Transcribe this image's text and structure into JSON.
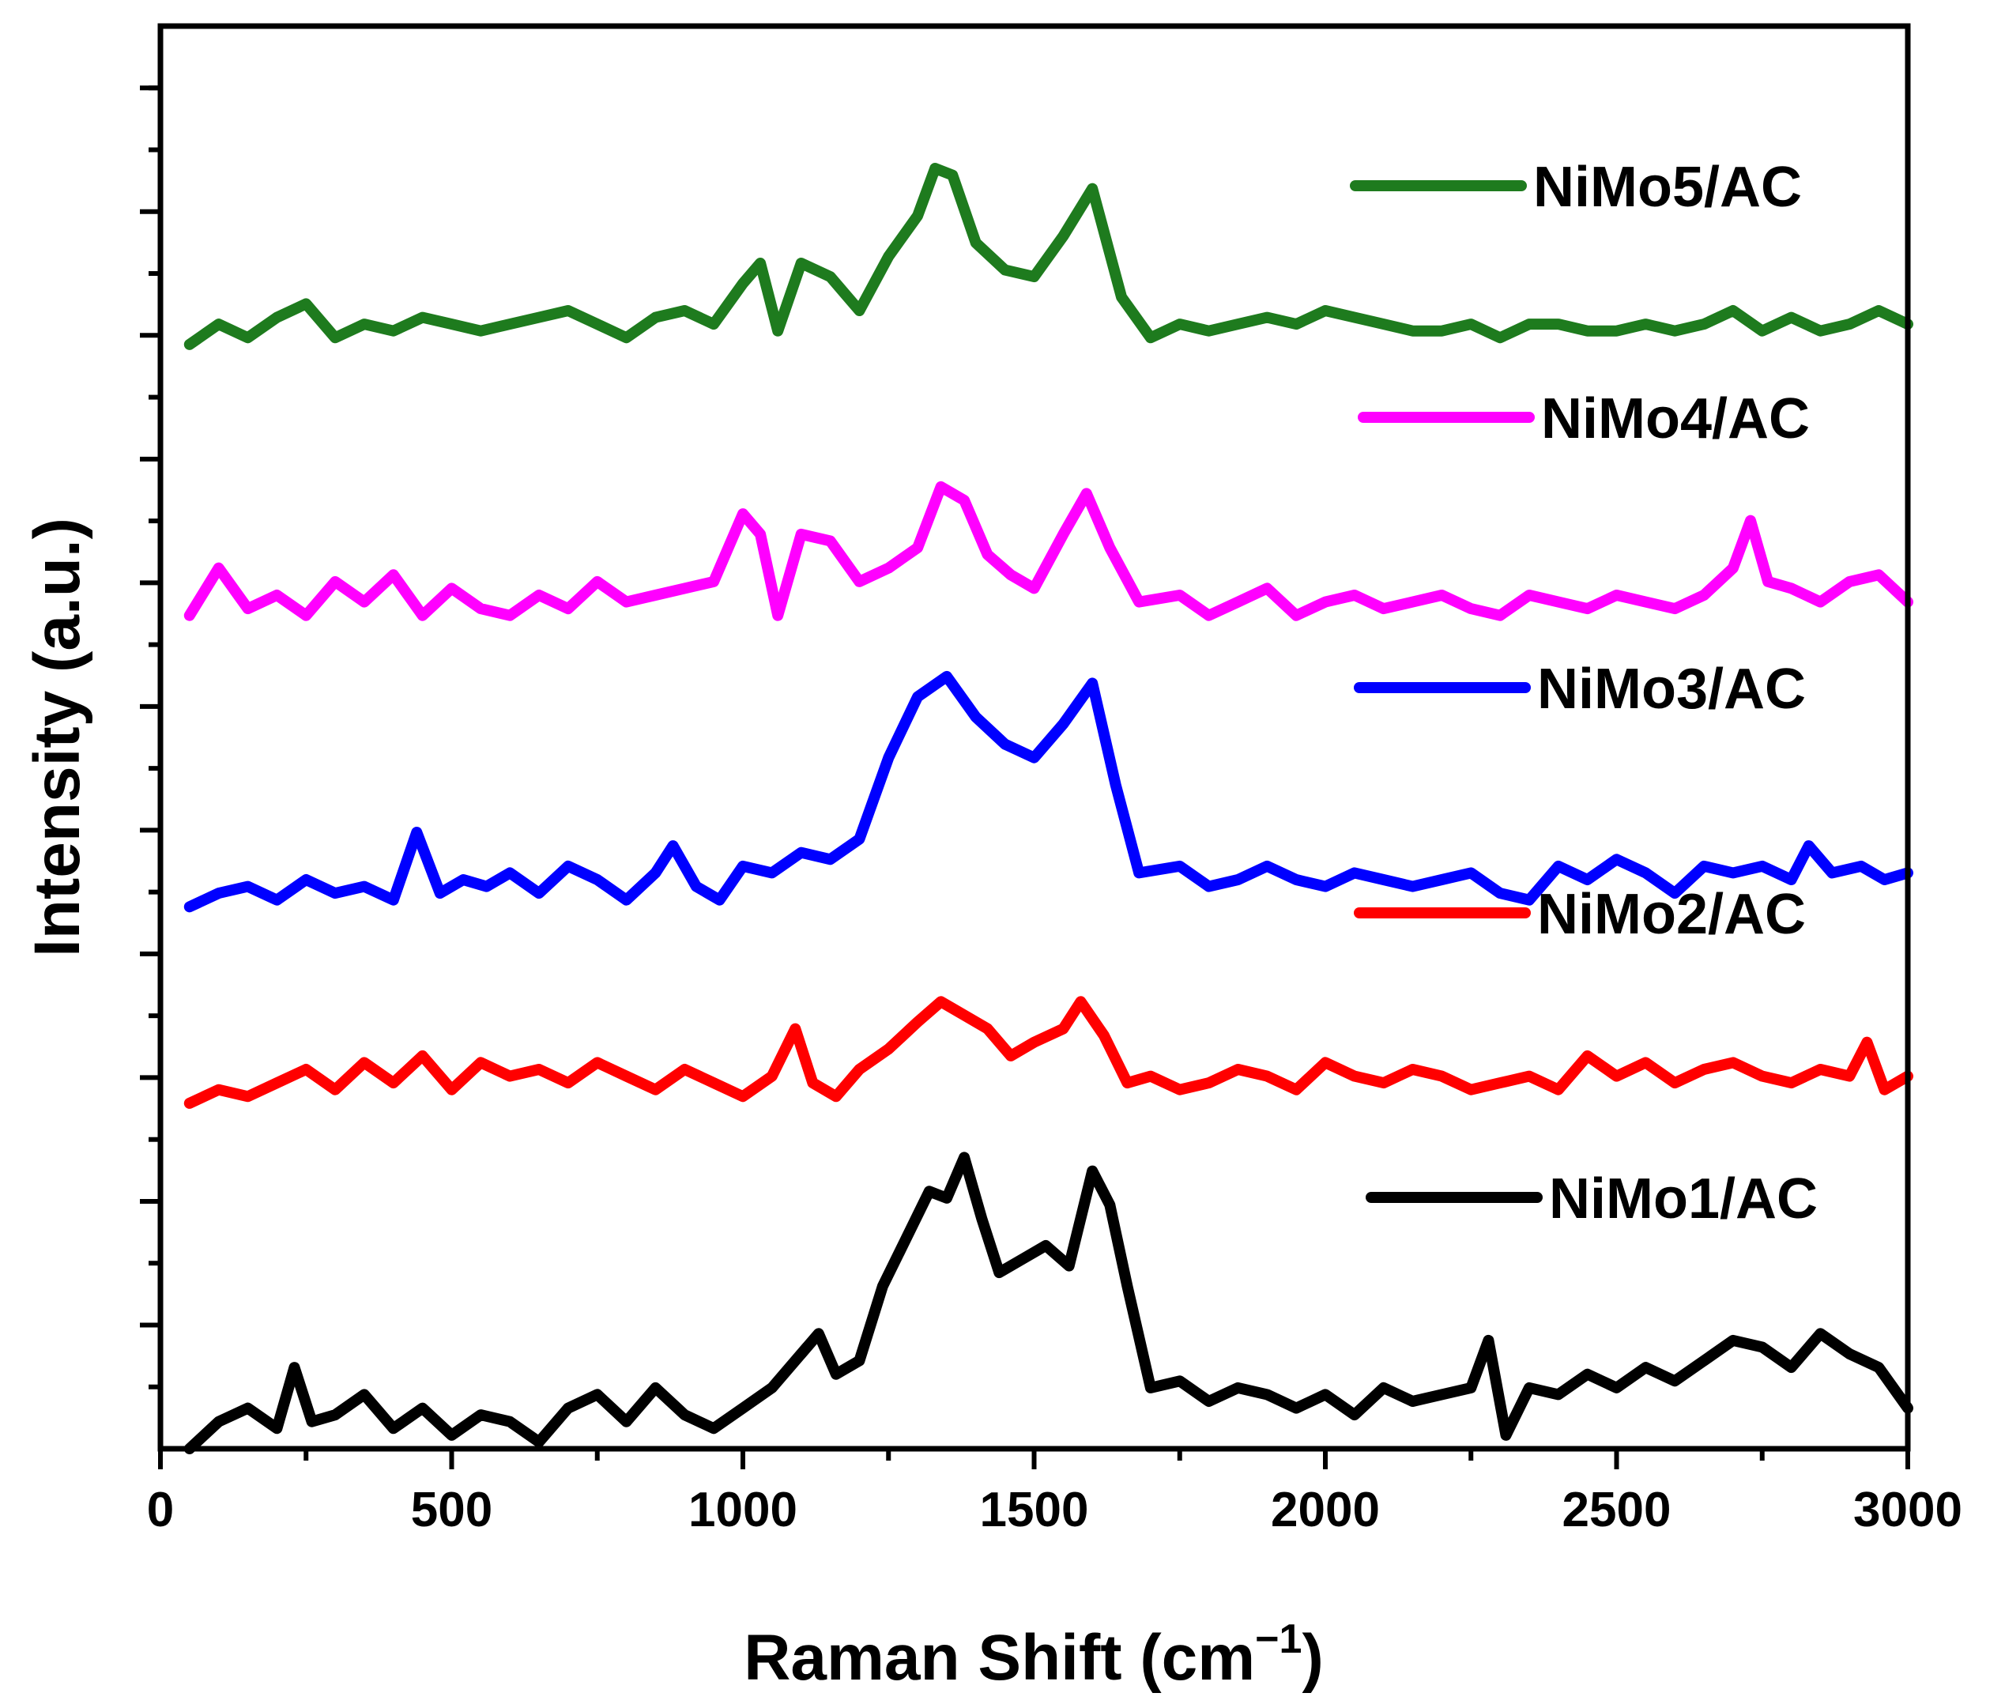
{
  "chart_data": {
    "type": "line",
    "title": "",
    "xlabel": "Raman Shift (cm",
    "xlabel_sup": "−1",
    "xlabel_close": ")",
    "ylabel": "Intensity (a.u.)",
    "xlim": [
      0,
      3000
    ],
    "xticks": [
      0,
      500,
      1000,
      1500,
      2000,
      2500,
      3000
    ],
    "xtick_labels": [
      "0",
      "500",
      "1000",
      "1500",
      "2000",
      "2500",
      "3000"
    ],
    "ylim": [
      0,
      21
    ],
    "y_tick_count": 11,
    "legend_placement": "right, next to each trace",
    "series": [
      {
        "name": "NiMo5/AC",
        "color": "#1e7b1e",
        "x": [
          50,
          100,
          150,
          200,
          250,
          300,
          350,
          400,
          450,
          500,
          550,
          600,
          650,
          700,
          750,
          800,
          850,
          900,
          950,
          1000,
          1030,
          1060,
          1100,
          1150,
          1200,
          1250,
          1300,
          1330,
          1360,
          1400,
          1450,
          1500,
          1550,
          1600,
          1650,
          1700,
          1750,
          1800,
          1850,
          1900,
          1950,
          2000,
          2050,
          2100,
          2150,
          2200,
          2250,
          2300,
          2350,
          2400,
          2450,
          2500,
          2550,
          2600,
          2650,
          2700,
          2750,
          2800,
          2850,
          2900,
          2950,
          3000
        ],
        "y": [
          16.3,
          16.6,
          16.4,
          16.7,
          16.9,
          16.4,
          16.6,
          16.5,
          16.7,
          16.6,
          16.5,
          16.6,
          16.7,
          16.8,
          16.6,
          16.4,
          16.7,
          16.8,
          16.6,
          17.2,
          17.5,
          16.5,
          17.5,
          17.3,
          16.8,
          17.6,
          18.2,
          18.9,
          18.8,
          17.8,
          17.4,
          17.3,
          17.9,
          18.6,
          17.0,
          16.4,
          16.6,
          16.5,
          16.6,
          16.7,
          16.6,
          16.8,
          16.7,
          16.6,
          16.5,
          16.5,
          16.6,
          16.4,
          16.6,
          16.6,
          16.5,
          16.5,
          16.6,
          16.5,
          16.6,
          16.8,
          16.5,
          16.7,
          16.5,
          16.6,
          16.8,
          16.6
        ]
      },
      {
        "name": "NiMo4/AC",
        "color": "#ff00ff",
        "x": [
          50,
          100,
          150,
          200,
          250,
          300,
          350,
          400,
          450,
          500,
          550,
          600,
          650,
          700,
          750,
          800,
          850,
          900,
          950,
          1000,
          1030,
          1060,
          1100,
          1150,
          1200,
          1250,
          1300,
          1340,
          1380,
          1420,
          1460,
          1500,
          1550,
          1590,
          1630,
          1680,
          1750,
          1800,
          1850,
          1900,
          1950,
          2000,
          2050,
          2100,
          2150,
          2200,
          2250,
          2300,
          2350,
          2400,
          2450,
          2500,
          2550,
          2600,
          2650,
          2700,
          2730,
          2760,
          2800,
          2850,
          2900,
          2950,
          3000
        ],
        "y": [
          12.3,
          13.0,
          12.4,
          12.6,
          12.3,
          12.8,
          12.5,
          12.9,
          12.3,
          12.7,
          12.4,
          12.3,
          12.6,
          12.4,
          12.8,
          12.5,
          12.6,
          12.7,
          12.8,
          13.8,
          13.5,
          12.3,
          13.5,
          13.4,
          12.8,
          13.0,
          13.3,
          14.2,
          14.0,
          13.2,
          12.9,
          12.7,
          13.5,
          14.1,
          13.3,
          12.5,
          12.6,
          12.3,
          12.5,
          12.7,
          12.3,
          12.5,
          12.6,
          12.4,
          12.5,
          12.6,
          12.4,
          12.3,
          12.6,
          12.5,
          12.4,
          12.6,
          12.5,
          12.4,
          12.6,
          13.0,
          13.7,
          12.8,
          12.7,
          12.5,
          12.8,
          12.9,
          12.5
        ]
      },
      {
        "name": "NiMo3/AC",
        "color": "#0000ff",
        "x": [
          50,
          100,
          150,
          200,
          250,
          300,
          350,
          400,
          440,
          480,
          520,
          560,
          600,
          650,
          700,
          750,
          800,
          850,
          880,
          920,
          960,
          1000,
          1050,
          1100,
          1150,
          1200,
          1250,
          1300,
          1350,
          1400,
          1450,
          1500,
          1550,
          1600,
          1640,
          1680,
          1750,
          1800,
          1850,
          1900,
          1950,
          2000,
          2050,
          2100,
          2150,
          2200,
          2250,
          2300,
          2350,
          2400,
          2450,
          2500,
          2550,
          2600,
          2650,
          2700,
          2750,
          2800,
          2830,
          2870,
          2920,
          2960,
          3000
        ],
        "y": [
          8.0,
          8.2,
          8.3,
          8.1,
          8.4,
          8.2,
          8.3,
          8.1,
          9.1,
          8.2,
          8.4,
          8.3,
          8.5,
          8.2,
          8.6,
          8.4,
          8.1,
          8.5,
          8.9,
          8.3,
          8.1,
          8.6,
          8.5,
          8.8,
          8.7,
          9.0,
          10.2,
          11.1,
          11.4,
          10.8,
          10.4,
          10.2,
          10.7,
          11.3,
          9.8,
          8.5,
          8.6,
          8.3,
          8.4,
          8.6,
          8.4,
          8.3,
          8.5,
          8.4,
          8.3,
          8.4,
          8.5,
          8.2,
          8.1,
          8.6,
          8.4,
          8.7,
          8.5,
          8.2,
          8.6,
          8.5,
          8.6,
          8.4,
          8.9,
          8.5,
          8.6,
          8.4,
          8.5
        ]
      },
      {
        "name": "NiMo2/AC",
        "color": "#ff0000",
        "x": [
          50,
          100,
          150,
          200,
          250,
          300,
          350,
          400,
          450,
          500,
          550,
          600,
          650,
          700,
          750,
          800,
          850,
          900,
          950,
          1000,
          1050,
          1090,
          1120,
          1160,
          1200,
          1250,
          1300,
          1340,
          1380,
          1420,
          1460,
          1500,
          1550,
          1580,
          1620,
          1660,
          1700,
          1750,
          1800,
          1850,
          1900,
          1950,
          2000,
          2050,
          2100,
          2150,
          2200,
          2250,
          2300,
          2350,
          2400,
          2450,
          2500,
          2550,
          2600,
          2650,
          2700,
          2750,
          2800,
          2850,
          2900,
          2930,
          2960,
          3000
        ],
        "y": [
          5.1,
          5.3,
          5.2,
          5.4,
          5.6,
          5.3,
          5.7,
          5.4,
          5.8,
          5.3,
          5.7,
          5.5,
          5.6,
          5.4,
          5.7,
          5.5,
          5.3,
          5.6,
          5.4,
          5.2,
          5.5,
          6.2,
          5.4,
          5.2,
          5.6,
          5.9,
          6.3,
          6.6,
          6.4,
          6.2,
          5.8,
          6.0,
          6.2,
          6.6,
          6.1,
          5.4,
          5.5,
          5.3,
          5.4,
          5.6,
          5.5,
          5.3,
          5.7,
          5.5,
          5.4,
          5.6,
          5.5,
          5.3,
          5.4,
          5.5,
          5.3,
          5.8,
          5.5,
          5.7,
          5.4,
          5.6,
          5.7,
          5.5,
          5.4,
          5.6,
          5.5,
          6.0,
          5.3,
          5.5
        ]
      },
      {
        "name": "NiMo1/AC",
        "color": "#000000",
        "x": [
          50,
          100,
          150,
          200,
          230,
          260,
          300,
          350,
          400,
          450,
          500,
          550,
          600,
          650,
          700,
          750,
          800,
          850,
          900,
          950,
          1000,
          1050,
          1100,
          1130,
          1160,
          1200,
          1240,
          1280,
          1320,
          1350,
          1380,
          1410,
          1440,
          1480,
          1520,
          1560,
          1600,
          1630,
          1660,
          1700,
          1750,
          1800,
          1850,
          1900,
          1950,
          2000,
          2050,
          2100,
          2150,
          2200,
          2250,
          2280,
          2310,
          2350,
          2400,
          2450,
          2500,
          2550,
          2600,
          2650,
          2700,
          2750,
          2800,
          2850,
          2900,
          2950,
          3000
        ],
        "y": [
          0.0,
          0.4,
          0.6,
          0.3,
          1.2,
          0.4,
          0.5,
          0.8,
          0.3,
          0.6,
          0.2,
          0.5,
          0.4,
          0.1,
          0.6,
          0.8,
          0.4,
          0.9,
          0.5,
          0.3,
          0.6,
          0.9,
          1.4,
          1.7,
          1.1,
          1.3,
          2.4,
          3.1,
          3.8,
          3.7,
          4.3,
          3.4,
          2.6,
          2.8,
          3.0,
          2.7,
          4.1,
          3.6,
          2.4,
          0.9,
          1.0,
          0.7,
          0.9,
          0.8,
          0.6,
          0.8,
          0.5,
          0.9,
          0.7,
          0.8,
          0.9,
          1.6,
          0.2,
          0.9,
          0.8,
          1.1,
          0.9,
          1.2,
          1.0,
          1.3,
          1.6,
          1.5,
          1.2,
          1.7,
          1.4,
          1.2,
          0.6
        ]
      }
    ]
  }
}
